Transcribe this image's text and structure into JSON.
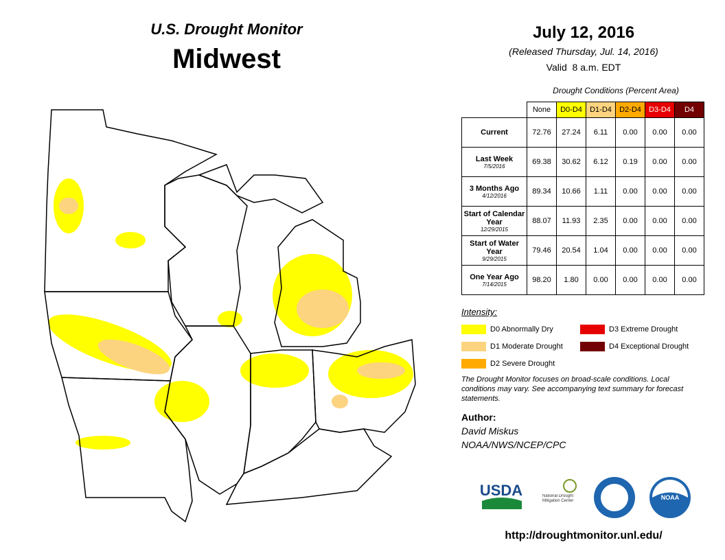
{
  "header": {
    "program": "U.S. Drought Monitor",
    "region": "Midwest",
    "date": "July 12, 2016",
    "released": "(Released Thursday, Jul. 14, 2016)",
    "valid": "Valid  8 a.m. EDT"
  },
  "table": {
    "caption": "Drought Conditions (Percent Area)",
    "columns": [
      {
        "label": "None",
        "color": "#ffffff",
        "text_color": "#000000"
      },
      {
        "label": "D0-D4",
        "color": "#ffff00",
        "text_color": "#000000"
      },
      {
        "label": "D1-D4",
        "color": "#fcd37f",
        "text_color": "#000000"
      },
      {
        "label": "D2-D4",
        "color": "#ffaa00",
        "text_color": "#000000"
      },
      {
        "label": "D3-D4",
        "color": "#e60000",
        "text_color": "#ffffff"
      },
      {
        "label": "D4",
        "color": "#730000",
        "text_color": "#ffffff"
      }
    ],
    "rows": [
      {
        "label": "Current",
        "values": [
          "72.76",
          "27.24",
          "6.11",
          "0.00",
          "0.00",
          "0.00"
        ]
      },
      {
        "label": "Last Week",
        "date": "7/5/2016",
        "values": [
          "69.38",
          "30.62",
          "6.12",
          "0.19",
          "0.00",
          "0.00"
        ]
      },
      {
        "label": "3 Months Ago",
        "date": "4/12/2016",
        "values": [
          "89.34",
          "10.66",
          "1.11",
          "0.00",
          "0.00",
          "0.00"
        ]
      },
      {
        "label": "Start of Calendar Year",
        "date": "12/29/2015",
        "values": [
          "88.07",
          "11.93",
          "2.35",
          "0.00",
          "0.00",
          "0.00"
        ]
      },
      {
        "label": "Start of Water Year",
        "date": "9/29/2015",
        "values": [
          "79.46",
          "20.54",
          "1.04",
          "0.00",
          "0.00",
          "0.00"
        ]
      },
      {
        "label": "One Year Ago",
        "date": "7/14/2015",
        "values": [
          "98.20",
          "1.80",
          "0.00",
          "0.00",
          "0.00",
          "0.00"
        ]
      }
    ]
  },
  "legend": {
    "title": "Intensity:",
    "items": [
      {
        "label": "D0 Abnormally Dry",
        "color": "#ffff00"
      },
      {
        "label": "D3 Extreme Drought",
        "color": "#e60000"
      },
      {
        "label": "D1 Moderate Drought",
        "color": "#fcd37f"
      },
      {
        "label": "D4 Exceptional Drought",
        "color": "#730000"
      },
      {
        "label": "D2 Severe Drought",
        "color": "#ffaa00"
      }
    ]
  },
  "note": "The Drought Monitor focuses on broad-scale conditions. Local conditions may vary. See accompanying text summary for forecast statements.",
  "author": {
    "heading": "Author:",
    "name": "David Miskus",
    "organization": "NOAA/NWS/NCEP/CPC"
  },
  "logos": {
    "usda": "USDA",
    "ndmc": "National Drought Mitigation Center",
    "noaa": "NOAA"
  },
  "url": "http://droughtmonitor.unl.edu/"
}
